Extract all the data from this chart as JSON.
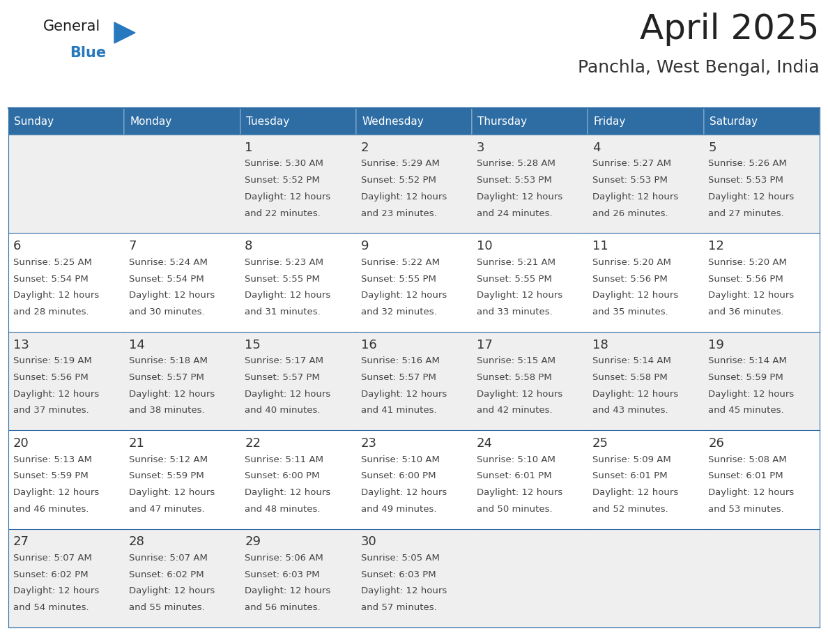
{
  "title": "April 2025",
  "subtitle": "Panchla, West Bengal, India",
  "days_of_week": [
    "Sunday",
    "Monday",
    "Tuesday",
    "Wednesday",
    "Thursday",
    "Friday",
    "Saturday"
  ],
  "header_bg": "#2E6DA4",
  "header_text": "#FFFFFF",
  "cell_bg_odd": "#EFEFEF",
  "cell_bg_even": "#FFFFFF",
  "border_color": "#2E6DA4",
  "title_color": "#222222",
  "subtitle_color": "#333333",
  "day_number_color": "#333333",
  "cell_text_color": "#444444",
  "calendar": [
    [
      {
        "day": "",
        "sunrise": "",
        "sunset": "",
        "daylight": ""
      },
      {
        "day": "",
        "sunrise": "",
        "sunset": "",
        "daylight": ""
      },
      {
        "day": "1",
        "sunrise": "5:30 AM",
        "sunset": "5:52 PM",
        "daylight": "12 hours and 22 minutes."
      },
      {
        "day": "2",
        "sunrise": "5:29 AM",
        "sunset": "5:52 PM",
        "daylight": "12 hours and 23 minutes."
      },
      {
        "day": "3",
        "sunrise": "5:28 AM",
        "sunset": "5:53 PM",
        "daylight": "12 hours and 24 minutes."
      },
      {
        "day": "4",
        "sunrise": "5:27 AM",
        "sunset": "5:53 PM",
        "daylight": "12 hours and 26 minutes."
      },
      {
        "day": "5",
        "sunrise": "5:26 AM",
        "sunset": "5:53 PM",
        "daylight": "12 hours and 27 minutes."
      }
    ],
    [
      {
        "day": "6",
        "sunrise": "5:25 AM",
        "sunset": "5:54 PM",
        "daylight": "12 hours and 28 minutes."
      },
      {
        "day": "7",
        "sunrise": "5:24 AM",
        "sunset": "5:54 PM",
        "daylight": "12 hours and 30 minutes."
      },
      {
        "day": "8",
        "sunrise": "5:23 AM",
        "sunset": "5:55 PM",
        "daylight": "12 hours and 31 minutes."
      },
      {
        "day": "9",
        "sunrise": "5:22 AM",
        "sunset": "5:55 PM",
        "daylight": "12 hours and 32 minutes."
      },
      {
        "day": "10",
        "sunrise": "5:21 AM",
        "sunset": "5:55 PM",
        "daylight": "12 hours and 33 minutes."
      },
      {
        "day": "11",
        "sunrise": "5:20 AM",
        "sunset": "5:56 PM",
        "daylight": "12 hours and 35 minutes."
      },
      {
        "day": "12",
        "sunrise": "5:20 AM",
        "sunset": "5:56 PM",
        "daylight": "12 hours and 36 minutes."
      }
    ],
    [
      {
        "day": "13",
        "sunrise": "5:19 AM",
        "sunset": "5:56 PM",
        "daylight": "12 hours and 37 minutes."
      },
      {
        "day": "14",
        "sunrise": "5:18 AM",
        "sunset": "5:57 PM",
        "daylight": "12 hours and 38 minutes."
      },
      {
        "day": "15",
        "sunrise": "5:17 AM",
        "sunset": "5:57 PM",
        "daylight": "12 hours and 40 minutes."
      },
      {
        "day": "16",
        "sunrise": "5:16 AM",
        "sunset": "5:57 PM",
        "daylight": "12 hours and 41 minutes."
      },
      {
        "day": "17",
        "sunrise": "5:15 AM",
        "sunset": "5:58 PM",
        "daylight": "12 hours and 42 minutes."
      },
      {
        "day": "18",
        "sunrise": "5:14 AM",
        "sunset": "5:58 PM",
        "daylight": "12 hours and 43 minutes."
      },
      {
        "day": "19",
        "sunrise": "5:14 AM",
        "sunset": "5:59 PM",
        "daylight": "12 hours and 45 minutes."
      }
    ],
    [
      {
        "day": "20",
        "sunrise": "5:13 AM",
        "sunset": "5:59 PM",
        "daylight": "12 hours and 46 minutes."
      },
      {
        "day": "21",
        "sunrise": "5:12 AM",
        "sunset": "5:59 PM",
        "daylight": "12 hours and 47 minutes."
      },
      {
        "day": "22",
        "sunrise": "5:11 AM",
        "sunset": "6:00 PM",
        "daylight": "12 hours and 48 minutes."
      },
      {
        "day": "23",
        "sunrise": "5:10 AM",
        "sunset": "6:00 PM",
        "daylight": "12 hours and 49 minutes."
      },
      {
        "day": "24",
        "sunrise": "5:10 AM",
        "sunset": "6:01 PM",
        "daylight": "12 hours and 50 minutes."
      },
      {
        "day": "25",
        "sunrise": "5:09 AM",
        "sunset": "6:01 PM",
        "daylight": "12 hours and 52 minutes."
      },
      {
        "day": "26",
        "sunrise": "5:08 AM",
        "sunset": "6:01 PM",
        "daylight": "12 hours and 53 minutes."
      }
    ],
    [
      {
        "day": "27",
        "sunrise": "5:07 AM",
        "sunset": "6:02 PM",
        "daylight": "12 hours and 54 minutes."
      },
      {
        "day": "28",
        "sunrise": "5:07 AM",
        "sunset": "6:02 PM",
        "daylight": "12 hours and 55 minutes."
      },
      {
        "day": "29",
        "sunrise": "5:06 AM",
        "sunset": "6:03 PM",
        "daylight": "12 hours and 56 minutes."
      },
      {
        "day": "30",
        "sunrise": "5:05 AM",
        "sunset": "6:03 PM",
        "daylight": "12 hours and 57 minutes."
      },
      {
        "day": "",
        "sunrise": "",
        "sunset": "",
        "daylight": ""
      },
      {
        "day": "",
        "sunrise": "",
        "sunset": "",
        "daylight": ""
      },
      {
        "day": "",
        "sunrise": "",
        "sunset": "",
        "daylight": ""
      }
    ]
  ],
  "logo_text1": "General",
  "logo_text2": "Blue",
  "logo_color1": "#1a1a1a",
  "logo_color2": "#2878be"
}
